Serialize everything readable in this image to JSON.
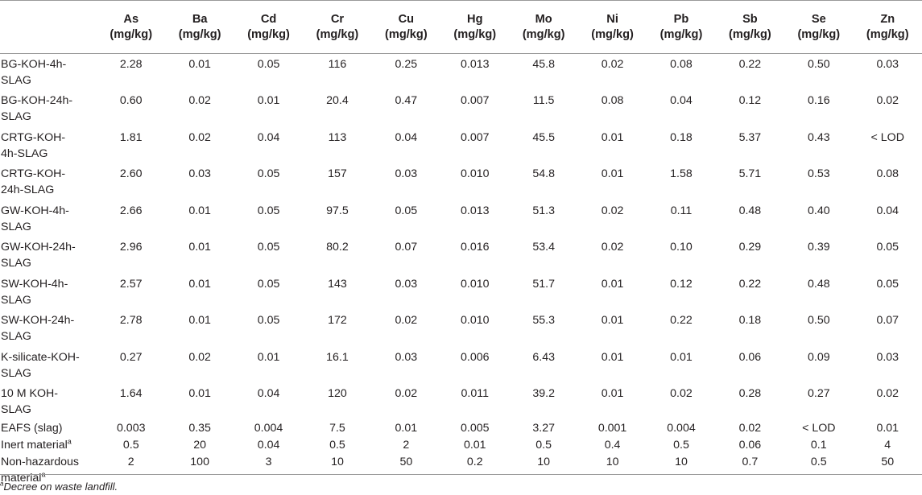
{
  "headers": [
    {
      "el": "As",
      "unit": "(mg/kg)"
    },
    {
      "el": "Ba",
      "unit": "(mg/kg)"
    },
    {
      "el": "Cd",
      "unit": "(mg/kg)"
    },
    {
      "el": "Cr",
      "unit": "(mg/kg)"
    },
    {
      "el": "Cu",
      "unit": "(mg/kg)"
    },
    {
      "el": "Hg",
      "unit": "(mg/kg)"
    },
    {
      "el": "Mo",
      "unit": "(mg/kg)"
    },
    {
      "el": "Ni",
      "unit": "(mg/kg)"
    },
    {
      "el": "Pb",
      "unit": "(mg/kg)"
    },
    {
      "el": "Sb",
      "unit": "(mg/kg)"
    },
    {
      "el": "Se",
      "unit": "(mg/kg)"
    },
    {
      "el": "Zn",
      "unit": "(mg/kg)"
    }
  ],
  "rows": [
    {
      "name1": "BG-KOH-4h-",
      "name2": "SLAG",
      "values": [
        "2.28",
        "0.01",
        "0.05",
        "116",
        "0.25",
        "0.013",
        "45.8",
        "0.02",
        "0.08",
        "0.22",
        "0.50",
        "0.03"
      ]
    },
    {
      "name1": "BG-KOH-24h-",
      "name2": "SLAG",
      "values": [
        "0.60",
        "0.02",
        "0.01",
        "20.4",
        "0.47",
        "0.007",
        "11.5",
        "0.08",
        "0.04",
        "0.12",
        "0.16",
        "0.02"
      ]
    },
    {
      "name1": "CRTG-KOH-",
      "name2": "4h-SLAG",
      "values": [
        "1.81",
        "0.02",
        "0.04",
        "113",
        "0.04",
        "0.007",
        "45.5",
        "0.01",
        "0.18",
        "5.37",
        "0.43",
        "< LOD"
      ]
    },
    {
      "name1": "CRTG-KOH-",
      "name2": "24h-SLAG",
      "values": [
        "2.60",
        "0.03",
        "0.05",
        "157",
        "0.03",
        "0.010",
        "54.8",
        "0.01",
        "1.58",
        "5.71",
        "0.53",
        "0.08"
      ]
    },
    {
      "name1": "GW-KOH-4h-",
      "name2": "SLAG",
      "values": [
        "2.66",
        "0.01",
        "0.05",
        "97.5",
        "0.05",
        "0.013",
        "51.3",
        "0.02",
        "0.11",
        "0.48",
        "0.40",
        "0.04"
      ]
    },
    {
      "name1": "GW-KOH-24h-",
      "name2": "SLAG",
      "values": [
        "2.96",
        "0.01",
        "0.05",
        "80.2",
        "0.07",
        "0.016",
        "53.4",
        "0.02",
        "0.10",
        "0.29",
        "0.39",
        "0.05"
      ]
    },
    {
      "name1": "SW-KOH-4h-",
      "name2": "SLAG",
      "values": [
        "2.57",
        "0.01",
        "0.05",
        "143",
        "0.03",
        "0.010",
        "51.7",
        "0.01",
        "0.12",
        "0.22",
        "0.48",
        "0.05"
      ]
    },
    {
      "name1": "SW-KOH-24h-",
      "name2": "SLAG",
      "values": [
        "2.78",
        "0.01",
        "0.05",
        "172",
        "0.02",
        "0.010",
        "55.3",
        "0.01",
        "0.22",
        "0.18",
        "0.50",
        "0.07"
      ]
    },
    {
      "name1": "K-silicate-KOH-",
      "name2": "SLAG",
      "values": [
        "0.27",
        "0.02",
        "0.01",
        "16.1",
        "0.03",
        "0.006",
        "6.43",
        "0.01",
        "0.01",
        "0.06",
        "0.09",
        "0.03"
      ]
    },
    {
      "name1": "10 M KOH-",
      "name2": "SLAG",
      "values": [
        "1.64",
        "0.01",
        "0.04",
        "120",
        "0.02",
        "0.011",
        "39.2",
        "0.01",
        "0.02",
        "0.28",
        "0.27",
        "0.02"
      ]
    },
    {
      "name1": "EAFS (slag)",
      "name2": "",
      "values": [
        "0.003",
        "0.35",
        "0.004",
        "7.5",
        "0.01",
        "0.005",
        "3.27",
        "0.001",
        "0.004",
        "0.02",
        "< LOD",
        "0.01"
      ]
    },
    {
      "name1": "Inert material",
      "sup": "a",
      "name2": "",
      "values": [
        "0.5",
        "20",
        "0.04",
        "0.5",
        "2",
        "0.01",
        "0.5",
        "0.4",
        "0.5",
        "0.06",
        "0.1",
        "4"
      ]
    },
    {
      "name1": "Non-hazardous",
      "name2": "material",
      "sup2": "a",
      "values": [
        "2",
        "100",
        "3",
        "10",
        "50",
        "0.2",
        "10",
        "10",
        "10",
        "0.7",
        "0.5",
        "50"
      ]
    }
  ],
  "footnote": {
    "sup": "a",
    "text": "Decree on waste landfill."
  }
}
